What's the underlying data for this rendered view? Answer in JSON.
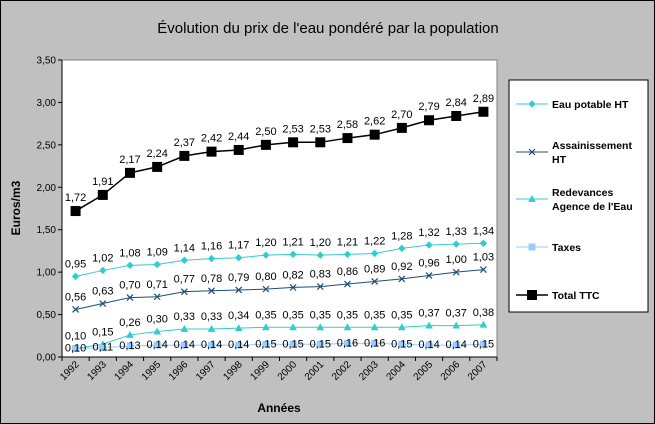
{
  "chart_data": {
    "type": "line",
    "title": "Évolution du prix de l'eau pondéré par la population",
    "xlabel": "Années",
    "ylabel": "Euros/m3",
    "ylim": [
      0,
      3.5
    ],
    "ystep": 0.5,
    "grid": false,
    "legend_position": "right",
    "plot_background": "#ffffff",
    "frame_background": "#c0c0c0",
    "x": [
      "1992",
      "1993",
      "1994",
      "1995",
      "1996",
      "1997",
      "1998",
      "1999",
      "2000",
      "2001",
      "2002",
      "2003",
      "2004",
      "2005",
      "2006",
      "2007"
    ],
    "series": [
      {
        "name": "Eau potable HT",
        "color": "#33cccc",
        "marker": "diamond",
        "values": [
          0.95,
          1.02,
          1.08,
          1.09,
          1.14,
          1.16,
          1.17,
          1.2,
          1.21,
          1.2,
          1.21,
          1.22,
          1.28,
          1.32,
          1.33,
          1.34
        ],
        "labels": [
          "0,95",
          "1,02",
          "1,08",
          "1,09",
          "1,14",
          "1,16",
          "1,17",
          "1,20",
          "1,21",
          "1,20",
          "1,21",
          "1,22",
          "1,28",
          "1,32",
          "1,33",
          "1,34"
        ]
      },
      {
        "name": "Assainissement HT",
        "color": "#1f4e79",
        "marker": "x",
        "values": [
          0.56,
          0.63,
          0.7,
          0.71,
          0.77,
          0.78,
          0.79,
          0.8,
          0.82,
          0.83,
          0.86,
          0.89,
          0.92,
          0.96,
          1.0,
          1.03
        ],
        "labels": [
          "0,56",
          "0,63",
          "0,70",
          "0,71",
          "0,77",
          "0,78",
          "0,79",
          "0,80",
          "0,82",
          "0,83",
          "0,86",
          "0,89",
          "0,92",
          "0,96",
          "1,00",
          "1,03"
        ]
      },
      {
        "name": "Redevances Agence de l'Eau",
        "color": "#33cccc",
        "marker": "triangle",
        "values": [
          0.1,
          0.15,
          0.26,
          0.3,
          0.33,
          0.33,
          0.34,
          0.35,
          0.35,
          0.35,
          0.35,
          0.35,
          0.35,
          0.37,
          0.37,
          0.38
        ],
        "labels": [
          "0,10",
          "0,15",
          "0,26",
          "0,30",
          "0,33",
          "0,33",
          "0,34",
          "0,35",
          "0,35",
          "0,35",
          "0,35",
          "0,35",
          "0,35",
          "0,37",
          "0,37",
          "0,38"
        ]
      },
      {
        "name": "Taxes",
        "color": "#99ccff",
        "marker": "square",
        "values": [
          0.1,
          0.11,
          0.13,
          0.14,
          0.14,
          0.14,
          0.14,
          0.15,
          0.15,
          0.15,
          0.16,
          0.16,
          0.15,
          0.14,
          0.14,
          0.15
        ],
        "labels": [
          "0,10",
          "0,11",
          "0,13",
          "0,14",
          "0,14",
          "0,14",
          "0,14",
          "0,15",
          "0,15",
          "0,15",
          "0,16",
          "0,16",
          "0,15",
          "0,14",
          "0,14",
          "0,15"
        ]
      },
      {
        "name": "Total TTC",
        "color": "#000000",
        "marker": "square",
        "values": [
          1.72,
          1.91,
          2.17,
          2.24,
          2.37,
          2.42,
          2.44,
          2.5,
          2.53,
          2.53,
          2.58,
          2.62,
          2.7,
          2.79,
          2.84,
          2.89
        ],
        "labels": [
          "1,72",
          "1,91",
          "2,17",
          "2,24",
          "2,37",
          "2,42",
          "2,44",
          "2,50",
          "2,53",
          "2,53",
          "2,58",
          "2,62",
          "2,70",
          "2,79",
          "2,84",
          "2,89"
        ]
      }
    ],
    "legend_lines": [
      [
        "Eau potable HT"
      ],
      [
        "Assainissement",
        "HT"
      ],
      [
        "Redevances",
        "Agence de l'Eau"
      ],
      [
        "Taxes"
      ],
      [
        "Total TTC"
      ]
    ],
    "ytick_labels": [
      "0,00",
      "0,50",
      "1,00",
      "1,50",
      "2,00",
      "2,50",
      "3,00",
      "3,50"
    ]
  }
}
